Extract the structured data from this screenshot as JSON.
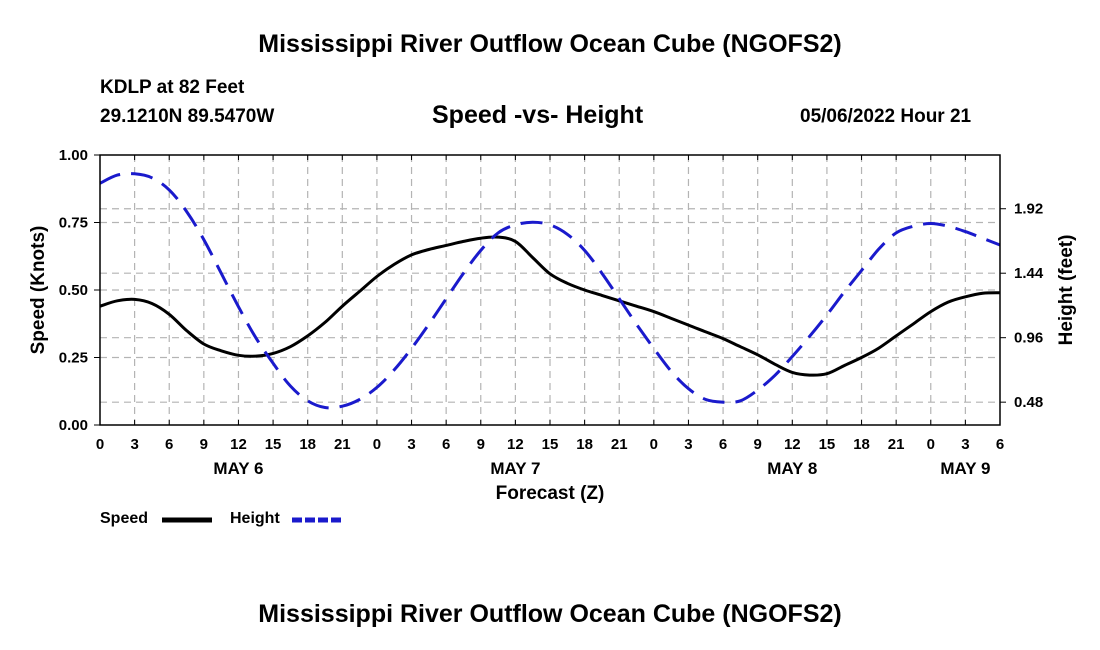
{
  "header": {
    "title": "Mississippi River Outflow Ocean Cube (NGOFS2)",
    "station": "KDLP at 82 Feet",
    "coordinates": "29.1210N  89.5470W",
    "subtitle": "Speed -vs- Height",
    "datestamp": "05/06/2022 Hour 21"
  },
  "footer": {
    "title": "Mississippi River Outflow Ocean Cube (NGOFS2)"
  },
  "legend": {
    "speed_label": "Speed",
    "height_label": "Height"
  },
  "colors": {
    "speed": "#000000",
    "height": "#1a1acc",
    "grid": "#b4b4b4"
  },
  "chart_data": {
    "type": "line",
    "title": "Speed -vs- Height",
    "xlabel": "Forecast (Z)",
    "ylabel": "Speed (Knots)",
    "y2label": "Height (feet)",
    "xlim": [
      0,
      78
    ],
    "ylim": [
      0,
      1
    ],
    "y2lim": [
      0.31,
      2.32
    ],
    "x_ticks": [
      0,
      3,
      6,
      9,
      12,
      15,
      18,
      21,
      24,
      27,
      30,
      33,
      36,
      39,
      42,
      45,
      48,
      51,
      54,
      57,
      60,
      63,
      66,
      69,
      72,
      75,
      78
    ],
    "x_tick_labels": [
      "0",
      "3",
      "6",
      "9",
      "12",
      "15",
      "18",
      "21",
      "0",
      "3",
      "6",
      "9",
      "12",
      "15",
      "18",
      "21",
      "0",
      "3",
      "6",
      "9",
      "12",
      "15",
      "18",
      "21",
      "0",
      "3",
      "6"
    ],
    "day_labels": [
      {
        "label": "MAY 6",
        "x": 12
      },
      {
        "label": "MAY 7",
        "x": 36
      },
      {
        "label": "MAY 8",
        "x": 60
      },
      {
        "label": "MAY 9",
        "x": 75
      }
    ],
    "y_ticks": [
      0.0,
      0.25,
      0.5,
      0.75,
      1.0
    ],
    "y_tick_labels": [
      "0.00",
      "0.25",
      "0.50",
      "0.75",
      "1.00"
    ],
    "y2_ticks": [
      0.48,
      0.96,
      1.44,
      1.92
    ],
    "y2_tick_labels": [
      "0.48",
      "0.96",
      "1.44",
      "1.92"
    ],
    "series": [
      {
        "name": "Speed",
        "axis": "left",
        "style": "solid",
        "x": [
          0,
          1.5,
          3,
          4.5,
          6,
          7.5,
          9,
          10.5,
          12,
          13.5,
          15,
          16.5,
          18,
          19.5,
          21,
          22.5,
          24,
          25.5,
          27,
          28.5,
          30,
          31.5,
          33,
          34.5,
          36,
          37.5,
          39,
          40.5,
          42,
          43.5,
          45,
          46.5,
          48,
          49.5,
          51,
          52.5,
          54,
          55.5,
          57,
          58.5,
          60,
          61.5,
          63,
          64.5,
          66,
          67.5,
          69,
          70.5,
          72,
          73.5,
          75,
          76.5,
          78
        ],
        "values": [
          0.44,
          0.46,
          0.465,
          0.45,
          0.41,
          0.35,
          0.3,
          0.275,
          0.258,
          0.255,
          0.265,
          0.29,
          0.33,
          0.38,
          0.44,
          0.495,
          0.55,
          0.595,
          0.63,
          0.65,
          0.665,
          0.68,
          0.692,
          0.696,
          0.68,
          0.62,
          0.56,
          0.525,
          0.5,
          0.48,
          0.46,
          0.44,
          0.42,
          0.395,
          0.37,
          0.345,
          0.32,
          0.29,
          0.26,
          0.225,
          0.195,
          0.185,
          0.19,
          0.22,
          0.25,
          0.285,
          0.33,
          0.375,
          0.42,
          0.455,
          0.475,
          0.488,
          0.49
        ]
      },
      {
        "name": "Height",
        "axis": "right",
        "style": "dashed",
        "x": [
          0,
          1.5,
          3,
          4.5,
          6,
          7.5,
          9,
          10.5,
          12,
          13.5,
          15,
          16.5,
          18,
          19.5,
          21,
          22.5,
          24,
          25.5,
          27,
          28.5,
          30,
          31.5,
          33,
          34.5,
          36,
          37.5,
          39,
          40.5,
          42,
          43.5,
          45,
          46.5,
          48,
          49.5,
          51,
          52.5,
          54,
          55.5,
          57,
          58.5,
          60,
          61.5,
          63,
          64.5,
          66,
          67.5,
          69,
          70.5,
          72,
          73.5,
          75,
          76.5,
          78
        ],
        "values": [
          2.11,
          2.17,
          2.18,
          2.15,
          2.06,
          1.9,
          1.69,
          1.44,
          1.19,
          0.96,
          0.77,
          0.6,
          0.49,
          0.44,
          0.45,
          0.5,
          0.59,
          0.72,
          0.88,
          1.06,
          1.25,
          1.44,
          1.61,
          1.74,
          1.8,
          1.82,
          1.8,
          1.73,
          1.61,
          1.44,
          1.25,
          1.06,
          0.88,
          0.71,
          0.58,
          0.5,
          0.48,
          0.49,
          0.57,
          0.68,
          0.82,
          0.97,
          1.13,
          1.3,
          1.46,
          1.62,
          1.74,
          1.79,
          1.81,
          1.79,
          1.75,
          1.7,
          1.65
        ]
      }
    ]
  }
}
